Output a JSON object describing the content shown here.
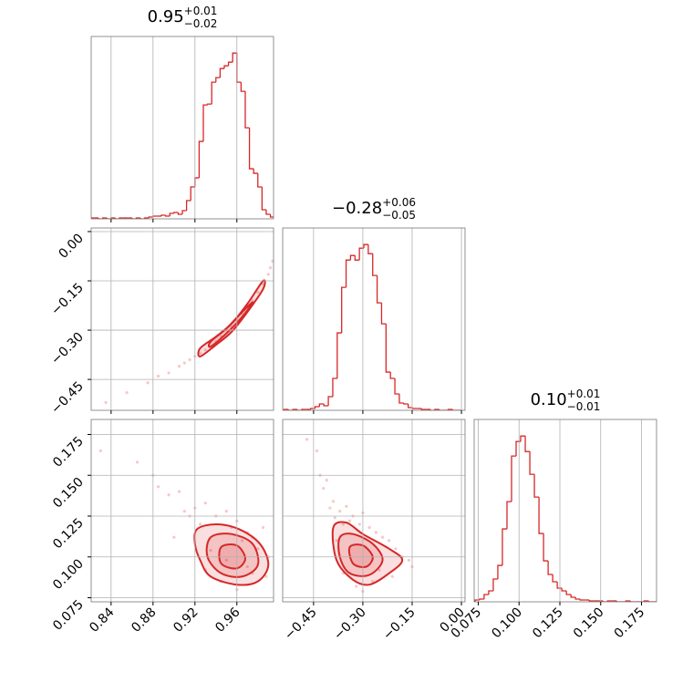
{
  "chart_data": {
    "type": "corner",
    "color": "#d62728",
    "grid": true,
    "parameters": [
      {
        "title": {
          "value": "0.95",
          "upper": "+0.01",
          "lower": "−0.02"
        },
        "lim": [
          0.821,
          0.995
        ],
        "ticks": [
          0.84,
          0.88,
          0.92,
          0.96
        ],
        "bins": [
          0.82,
          0.824,
          0.828,
          0.832,
          0.836,
          0.84,
          0.844,
          0.848,
          0.852,
          0.856,
          0.86,
          0.864,
          0.868,
          0.872,
          0.876,
          0.88,
          0.884,
          0.888,
          0.892,
          0.896,
          0.9,
          0.904,
          0.908,
          0.912,
          0.916,
          0.92,
          0.924,
          0.928,
          0.932,
          0.936,
          0.94,
          0.944,
          0.948,
          0.952,
          0.956,
          0.96,
          0.964,
          0.968,
          0.972,
          0.976,
          0.98,
          0.984,
          0.988,
          0.992,
          0.996
        ],
        "counts": [
          1,
          1,
          0,
          1,
          0,
          1,
          0,
          1,
          1,
          1,
          0,
          1,
          0,
          1,
          2,
          3,
          3,
          4,
          3,
          6,
          7,
          5,
          9,
          20,
          35,
          45,
          85,
          125,
          126,
          150,
          155,
          165,
          168,
          172,
          182,
          150,
          140,
          100,
          55,
          50,
          35,
          10,
          5,
          2
        ],
        "scatter": []
      },
      {
        "title": {
          "value": "−0.28",
          "upper": "+0.06",
          "lower": "−0.05"
        },
        "lim": [
          -0.544,
          0.011
        ],
        "ticks": [
          {
            "value": -0.45,
            "label": "−0.45"
          },
          {
            "value": -0.3,
            "label": "−0.30"
          },
          {
            "value": -0.15,
            "label": "−0.15"
          },
          {
            "value": 0,
            "label": "0.00"
          }
        ],
        "bins": [
          -0.54,
          -0.5265,
          -0.513,
          -0.4995,
          -0.486,
          -0.4725,
          -0.459,
          -0.4455,
          -0.432,
          -0.4185,
          -0.405,
          -0.3915,
          -0.378,
          -0.3645,
          -0.351,
          -0.3375,
          -0.324,
          -0.3105,
          -0.297,
          -0.2835,
          -0.27,
          -0.2565,
          -0.243,
          -0.2295,
          -0.216,
          -0.2025,
          -0.189,
          -0.1755,
          -0.162,
          -0.1485,
          -0.135,
          -0.1215,
          -0.108,
          -0.0945,
          -0.081,
          -0.0675,
          -0.054,
          -0.0405,
          -0.027,
          -0.0135,
          0
        ],
        "counts": [
          1,
          0,
          1,
          0,
          1,
          1,
          2,
          4,
          7,
          5,
          15,
          35,
          85,
          135,
          165,
          170,
          165,
          178,
          182,
          172,
          148,
          118,
          95,
          42,
          35,
          18,
          8,
          7,
          3,
          2,
          2,
          1,
          1,
          0,
          1,
          0,
          0,
          1,
          0,
          0
        ],
        "scatter": [
          {
            "points": {
              "x": [
                0.835,
                0.855,
                0.875,
                0.885,
                0.895,
                0.905,
                0.915,
                0.925,
                0.935,
                0.945,
                0.955,
                0.965,
                0.975,
                0.985,
                0.992,
                0.994,
                0.97,
                0.95,
                0.94,
                0.93,
                0.96,
                0.98,
                0.99,
                0.92,
                0.91
              ],
              "y": [
                -0.52,
                -0.49,
                -0.46,
                -0.44,
                -0.43,
                -0.41,
                -0.39,
                -0.37,
                -0.35,
                -0.32,
                -0.29,
                -0.25,
                -0.21,
                -0.16,
                -0.11,
                -0.09,
                -0.23,
                -0.3,
                -0.335,
                -0.36,
                -0.27,
                -0.185,
                -0.13,
                -0.38,
                -0.4
              ]
            },
            "contours": [
              {
                "x": [
                  0.925,
                  0.94,
                  0.955,
                  0.97,
                  0.985,
                  0.985,
                  0.97,
                  0.955,
                  0.94,
                  0.925
                ],
                "y": [
                  -0.355,
                  -0.32,
                  -0.28,
                  -0.22,
                  -0.15,
                  -0.175,
                  -0.245,
                  -0.305,
                  -0.345,
                  -0.38
                ]
              },
              {
                "x": [
                  0.935,
                  0.95,
                  0.965,
                  0.975,
                  0.965,
                  0.95,
                  0.935
                ],
                "y": [
                  -0.335,
                  -0.295,
                  -0.245,
                  -0.215,
                  -0.26,
                  -0.31,
                  -0.35
                ]
              }
            ]
          }
        ]
      },
      {
        "title": {
          "value": "0.10",
          "upper": "+0.01",
          "lower": "−0.01"
        },
        "lim": [
          0.0725,
          0.1842
        ],
        "ticks": [
          {
            "value": 0.075,
            "label": "0.075"
          },
          {
            "value": 0.1,
            "label": "0.100"
          },
          {
            "value": 0.125,
            "label": "0.125"
          },
          {
            "value": 0.15,
            "label": "0.150"
          },
          {
            "value": 0.175,
            "label": "0.175"
          }
        ],
        "bins": [
          0.073,
          0.0758,
          0.0786,
          0.0814,
          0.0842,
          0.087,
          0.0898,
          0.0926,
          0.0954,
          0.0982,
          0.101,
          0.1038,
          0.1066,
          0.1094,
          0.1122,
          0.115,
          0.1178,
          0.1206,
          0.1234,
          0.1262,
          0.129,
          0.1318,
          0.1346,
          0.1374,
          0.1402,
          0.143,
          0.1458,
          0.1486,
          0.1514,
          0.1542,
          0.157,
          0.1598,
          0.1626,
          0.1654,
          0.1682,
          0.171,
          0.1738,
          0.1766,
          0.1794,
          0.1822,
          0.185
        ],
        "counts": [
          2,
          3,
          8,
          12,
          25,
          40,
          80,
          110,
          160,
          176,
          182,
          165,
          140,
          115,
          75,
          45,
          30,
          22,
          15,
          12,
          8,
          5,
          3,
          2,
          2,
          1,
          1,
          1,
          0,
          1,
          1,
          0,
          0,
          1,
          0,
          0,
          0,
          1,
          0,
          0
        ],
        "scatter": [
          {
            "points": {
              "x": [
                0.83,
                0.865,
                0.88,
                0.885,
                0.895,
                0.905,
                0.91,
                0.915,
                0.92,
                0.925,
                0.93,
                0.94,
                0.95,
                0.955,
                0.96,
                0.965,
                0.97,
                0.975,
                0.98,
                0.985,
                0.99,
                0.93,
                0.945,
                0.96,
                0.975,
                0.9,
                0.935,
                0.95,
                0.97,
                0.988
              ],
              "y": [
                0.165,
                0.158,
                0.15,
                0.143,
                0.138,
                0.14,
                0.128,
                0.125,
                0.13,
                0.12,
                0.133,
                0.125,
                0.128,
                0.118,
                0.122,
                0.11,
                0.115,
                0.112,
                0.105,
                0.118,
                0.1,
                0.092,
                0.085,
                0.08,
                0.09,
                0.112,
                0.104,
                0.098,
                0.094,
                0.088
              ]
            },
            "contours": [
              {
                "x": [
                  0.922,
                  0.94,
                  0.962,
                  0.982,
                  0.99,
                  0.98,
                  0.96,
                  0.935,
                  0.925,
                  0.92
                ],
                "y": [
                  0.117,
                  0.12,
                  0.117,
                  0.108,
                  0.095,
                  0.085,
                  0.083,
                  0.088,
                  0.098,
                  0.108
                ]
              },
              {
                "x": [
                  0.935,
                  0.955,
                  0.975,
                  0.98,
                  0.965,
                  0.945,
                  0.932
                ],
                "y": [
                  0.112,
                  0.114,
                  0.108,
                  0.095,
                  0.088,
                  0.09,
                  0.1
                ]
              },
              {
                "x": [
                  0.945,
                  0.96,
                  0.968,
                  0.96,
                  0.945
                ],
                "y": [
                  0.106,
                  0.107,
                  0.099,
                  0.093,
                  0.096
                ]
              }
            ]
          },
          {
            "points": {
              "x": [
                -0.47,
                -0.44,
                -0.43,
                -0.42,
                -0.41,
                -0.4,
                -0.39,
                -0.385,
                -0.37,
                -0.36,
                -0.35,
                -0.34,
                -0.33,
                -0.31,
                -0.3,
                -0.28,
                -0.26,
                -0.24,
                -0.22,
                -0.2,
                -0.18,
                -0.16,
                -0.15,
                -0.27,
                -0.32,
                -0.36,
                -0.25,
                -0.21,
                -0.3,
                -0.38
              ],
              "y": [
                0.172,
                0.165,
                0.15,
                0.142,
                0.147,
                0.13,
                0.134,
                0.124,
                0.128,
                0.12,
                0.131,
                0.122,
                0.125,
                0.12,
                0.127,
                0.118,
                0.115,
                0.112,
                0.11,
                0.105,
                0.1,
                0.098,
                0.094,
                0.085,
                0.082,
                0.09,
                0.092,
                0.088,
                0.079,
                0.11
              ]
            },
            "contours": [
              {
                "x": [
                  -0.39,
                  -0.35,
                  -0.3,
                  -0.22,
                  -0.18,
                  -0.22,
                  -0.28,
                  -0.33,
                  -0.38
                ],
                "y": [
                  0.118,
                  0.121,
                  0.114,
                  0.105,
                  0.098,
                  0.09,
                  0.083,
                  0.086,
                  0.098
                ]
              },
              {
                "x": [
                  -0.37,
                  -0.33,
                  -0.27,
                  -0.24,
                  -0.28,
                  -0.34,
                  -0.37
                ],
                "y": [
                  0.112,
                  0.114,
                  0.108,
                  0.098,
                  0.089,
                  0.09,
                  0.1
                ]
              },
              {
                "x": [
                  -0.34,
                  -0.3,
                  -0.27,
                  -0.29,
                  -0.33
                ],
                "y": [
                  0.106,
                  0.107,
                  0.1,
                  0.094,
                  0.096
                ]
              }
            ]
          }
        ]
      }
    ]
  }
}
